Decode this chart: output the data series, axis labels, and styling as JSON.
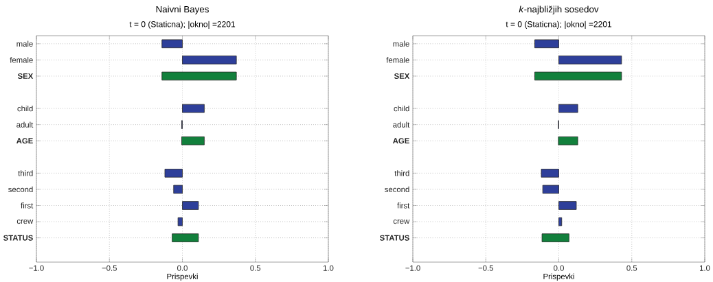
{
  "chart_data": [
    {
      "type": "bar",
      "orientation": "horizontal",
      "title": "Naivni Bayes",
      "subtitle": "t = 0 (Staticna); |okno| =2201",
      "xlabel": "Prispevki",
      "categories": [
        "male",
        "female",
        "SEX",
        null,
        "child",
        "adult",
        "AGE",
        null,
        "third",
        "second",
        "first",
        "crew",
        "STATUS"
      ],
      "series": [
        {
          "color": "#2e3f9a",
          "values": [
            -0.14,
            0.37,
            null,
            null,
            0.15,
            -0.005,
            null,
            null,
            -0.12,
            -0.06,
            0.11,
            -0.03,
            null
          ]
        },
        {
          "color": "#12803c",
          "base": [
            null,
            null,
            -0.14,
            null,
            null,
            null,
            -0.005,
            null,
            null,
            null,
            null,
            null,
            -0.07
          ],
          "values": [
            null,
            null,
            0.51,
            null,
            null,
            null,
            0.155,
            null,
            null,
            null,
            null,
            null,
            0.18
          ]
        }
      ],
      "xlim": [
        -1,
        1
      ],
      "xticks": [
        {
          "value": -1,
          "label": "−1.0"
        },
        {
          "value": -0.5,
          "label": "−0.5"
        },
        {
          "value": 0,
          "label": "0.0"
        },
        {
          "value": 0.5,
          "label": "0.5"
        },
        {
          "value": 1,
          "label": "1.0"
        }
      ],
      "grid": true
    },
    {
      "type": "bar",
      "orientation": "horizontal",
      "title": "*k*-najbližjih sosedov",
      "subtitle": "t = 0 (Staticna); |okno| =2201",
      "xlabel": "Prispevki",
      "categories": [
        "male",
        "female",
        "SEX",
        null,
        "child",
        "adult",
        "AGE",
        null,
        "third",
        "second",
        "first",
        "crew",
        "STATUS"
      ],
      "series": [
        {
          "color": "#2e3f9a",
          "values": [
            -0.165,
            0.43,
            null,
            null,
            0.13,
            -0.003,
            null,
            null,
            -0.12,
            -0.11,
            0.12,
            0.02,
            null
          ]
        },
        {
          "color": "#12803c",
          "base": [
            null,
            null,
            -0.165,
            null,
            null,
            null,
            -0.003,
            null,
            null,
            null,
            null,
            null,
            -0.115
          ],
          "values": [
            null,
            null,
            0.595,
            null,
            null,
            null,
            0.133,
            null,
            null,
            null,
            null,
            null,
            0.185
          ]
        }
      ],
      "xlim": [
        -1,
        1
      ],
      "xticks": [
        {
          "value": -1,
          "label": "−1.0"
        },
        {
          "value": -0.5,
          "label": "−0.5"
        },
        {
          "value": 0,
          "label": "0.0"
        },
        {
          "value": 0.5,
          "label": "0.5"
        },
        {
          "value": 1,
          "label": "1.0"
        }
      ],
      "grid": true
    }
  ]
}
